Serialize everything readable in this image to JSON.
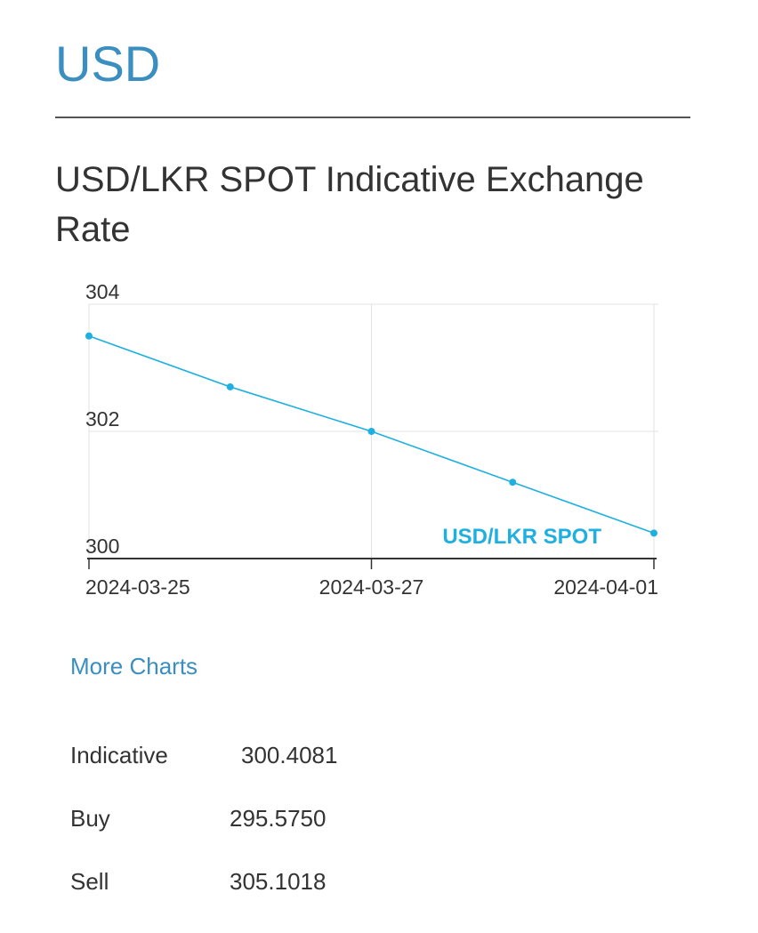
{
  "header": {
    "currency": "USD",
    "title": "USD/LKR SPOT Indicative Exchange Rate"
  },
  "chart_data": {
    "type": "line",
    "title": "USD/LKR SPOT Indicative Exchange Rate",
    "xlabel": "",
    "ylabel": "",
    "x": [
      "2024-03-25",
      "",
      "2024-03-27",
      "",
      "2024-04-01"
    ],
    "x_tick_labels": [
      "2024-03-25",
      "2024-03-27",
      "2024-04-01"
    ],
    "y_ticks": [
      "304",
      "302",
      "300"
    ],
    "ylim": [
      300,
      304
    ],
    "grid": true,
    "legend_position": "bottom-right",
    "series": [
      {
        "name": "USD/LKR SPOT",
        "color": "#1fb0e0",
        "values": [
          303.5,
          302.7,
          302.0,
          301.2,
          300.4
        ]
      }
    ]
  },
  "links": {
    "more_charts": "More Charts"
  },
  "rates": [
    {
      "label": "Indicative",
      "value": "300.4081"
    },
    {
      "label": "Buy",
      "value": "295.5750"
    },
    {
      "label": "Sell",
      "value": "305.1018"
    }
  ]
}
